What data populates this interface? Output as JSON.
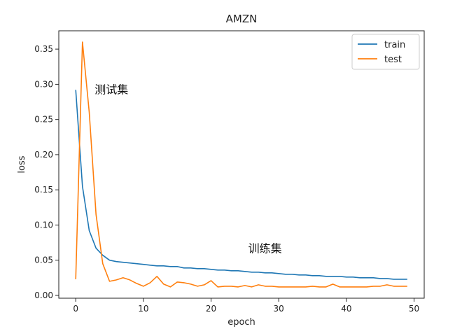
{
  "chart_data": {
    "type": "line",
    "title": "AMZN",
    "xlabel": "epoch",
    "ylabel": "loss",
    "xlim": [
      -2.5,
      51.5
    ],
    "ylim": [
      -0.004,
      0.376
    ],
    "xticks": [
      0,
      10,
      20,
      30,
      40,
      50
    ],
    "yticks": [
      0.0,
      0.05,
      0.1,
      0.15,
      0.2,
      0.25,
      0.3,
      0.35
    ],
    "grid": false,
    "legend_position": "top-right",
    "x": [
      0,
      1,
      2,
      3,
      4,
      5,
      6,
      7,
      8,
      9,
      10,
      11,
      12,
      13,
      14,
      15,
      16,
      17,
      18,
      19,
      20,
      21,
      22,
      23,
      24,
      25,
      26,
      27,
      28,
      29,
      30,
      31,
      32,
      33,
      34,
      35,
      36,
      37,
      38,
      39,
      40,
      41,
      42,
      43,
      44,
      45,
      46,
      47,
      48,
      49
    ],
    "series": [
      {
        "name": "train",
        "color": "#1f77b4",
        "values": [
          0.292,
          0.155,
          0.092,
          0.067,
          0.057,
          0.05,
          0.048,
          0.047,
          0.046,
          0.045,
          0.044,
          0.043,
          0.042,
          0.042,
          0.041,
          0.041,
          0.039,
          0.039,
          0.038,
          0.038,
          0.037,
          0.036,
          0.036,
          0.035,
          0.035,
          0.034,
          0.033,
          0.033,
          0.032,
          0.032,
          0.031,
          0.03,
          0.03,
          0.029,
          0.029,
          0.028,
          0.028,
          0.027,
          0.027,
          0.027,
          0.026,
          0.026,
          0.025,
          0.025,
          0.025,
          0.024,
          0.024,
          0.023,
          0.023,
          0.023
        ]
      },
      {
        "name": "test",
        "color": "#ff7f0e",
        "values": [
          0.023,
          0.36,
          0.26,
          0.115,
          0.045,
          0.02,
          0.022,
          0.025,
          0.022,
          0.017,
          0.013,
          0.018,
          0.027,
          0.016,
          0.012,
          0.019,
          0.018,
          0.016,
          0.013,
          0.015,
          0.021,
          0.012,
          0.013,
          0.013,
          0.012,
          0.014,
          0.012,
          0.015,
          0.013,
          0.013,
          0.012,
          0.012,
          0.012,
          0.012,
          0.012,
          0.013,
          0.012,
          0.012,
          0.016,
          0.012,
          0.012,
          0.012,
          0.012,
          0.012,
          0.013,
          0.013,
          0.015,
          0.013,
          0.013,
          0.013
        ]
      }
    ],
    "annotations": [
      {
        "text": "测试集",
        "x": 2.8,
        "y": 0.287
      },
      {
        "text": "训练集",
        "x": 25.5,
        "y": 0.061
      }
    ]
  }
}
